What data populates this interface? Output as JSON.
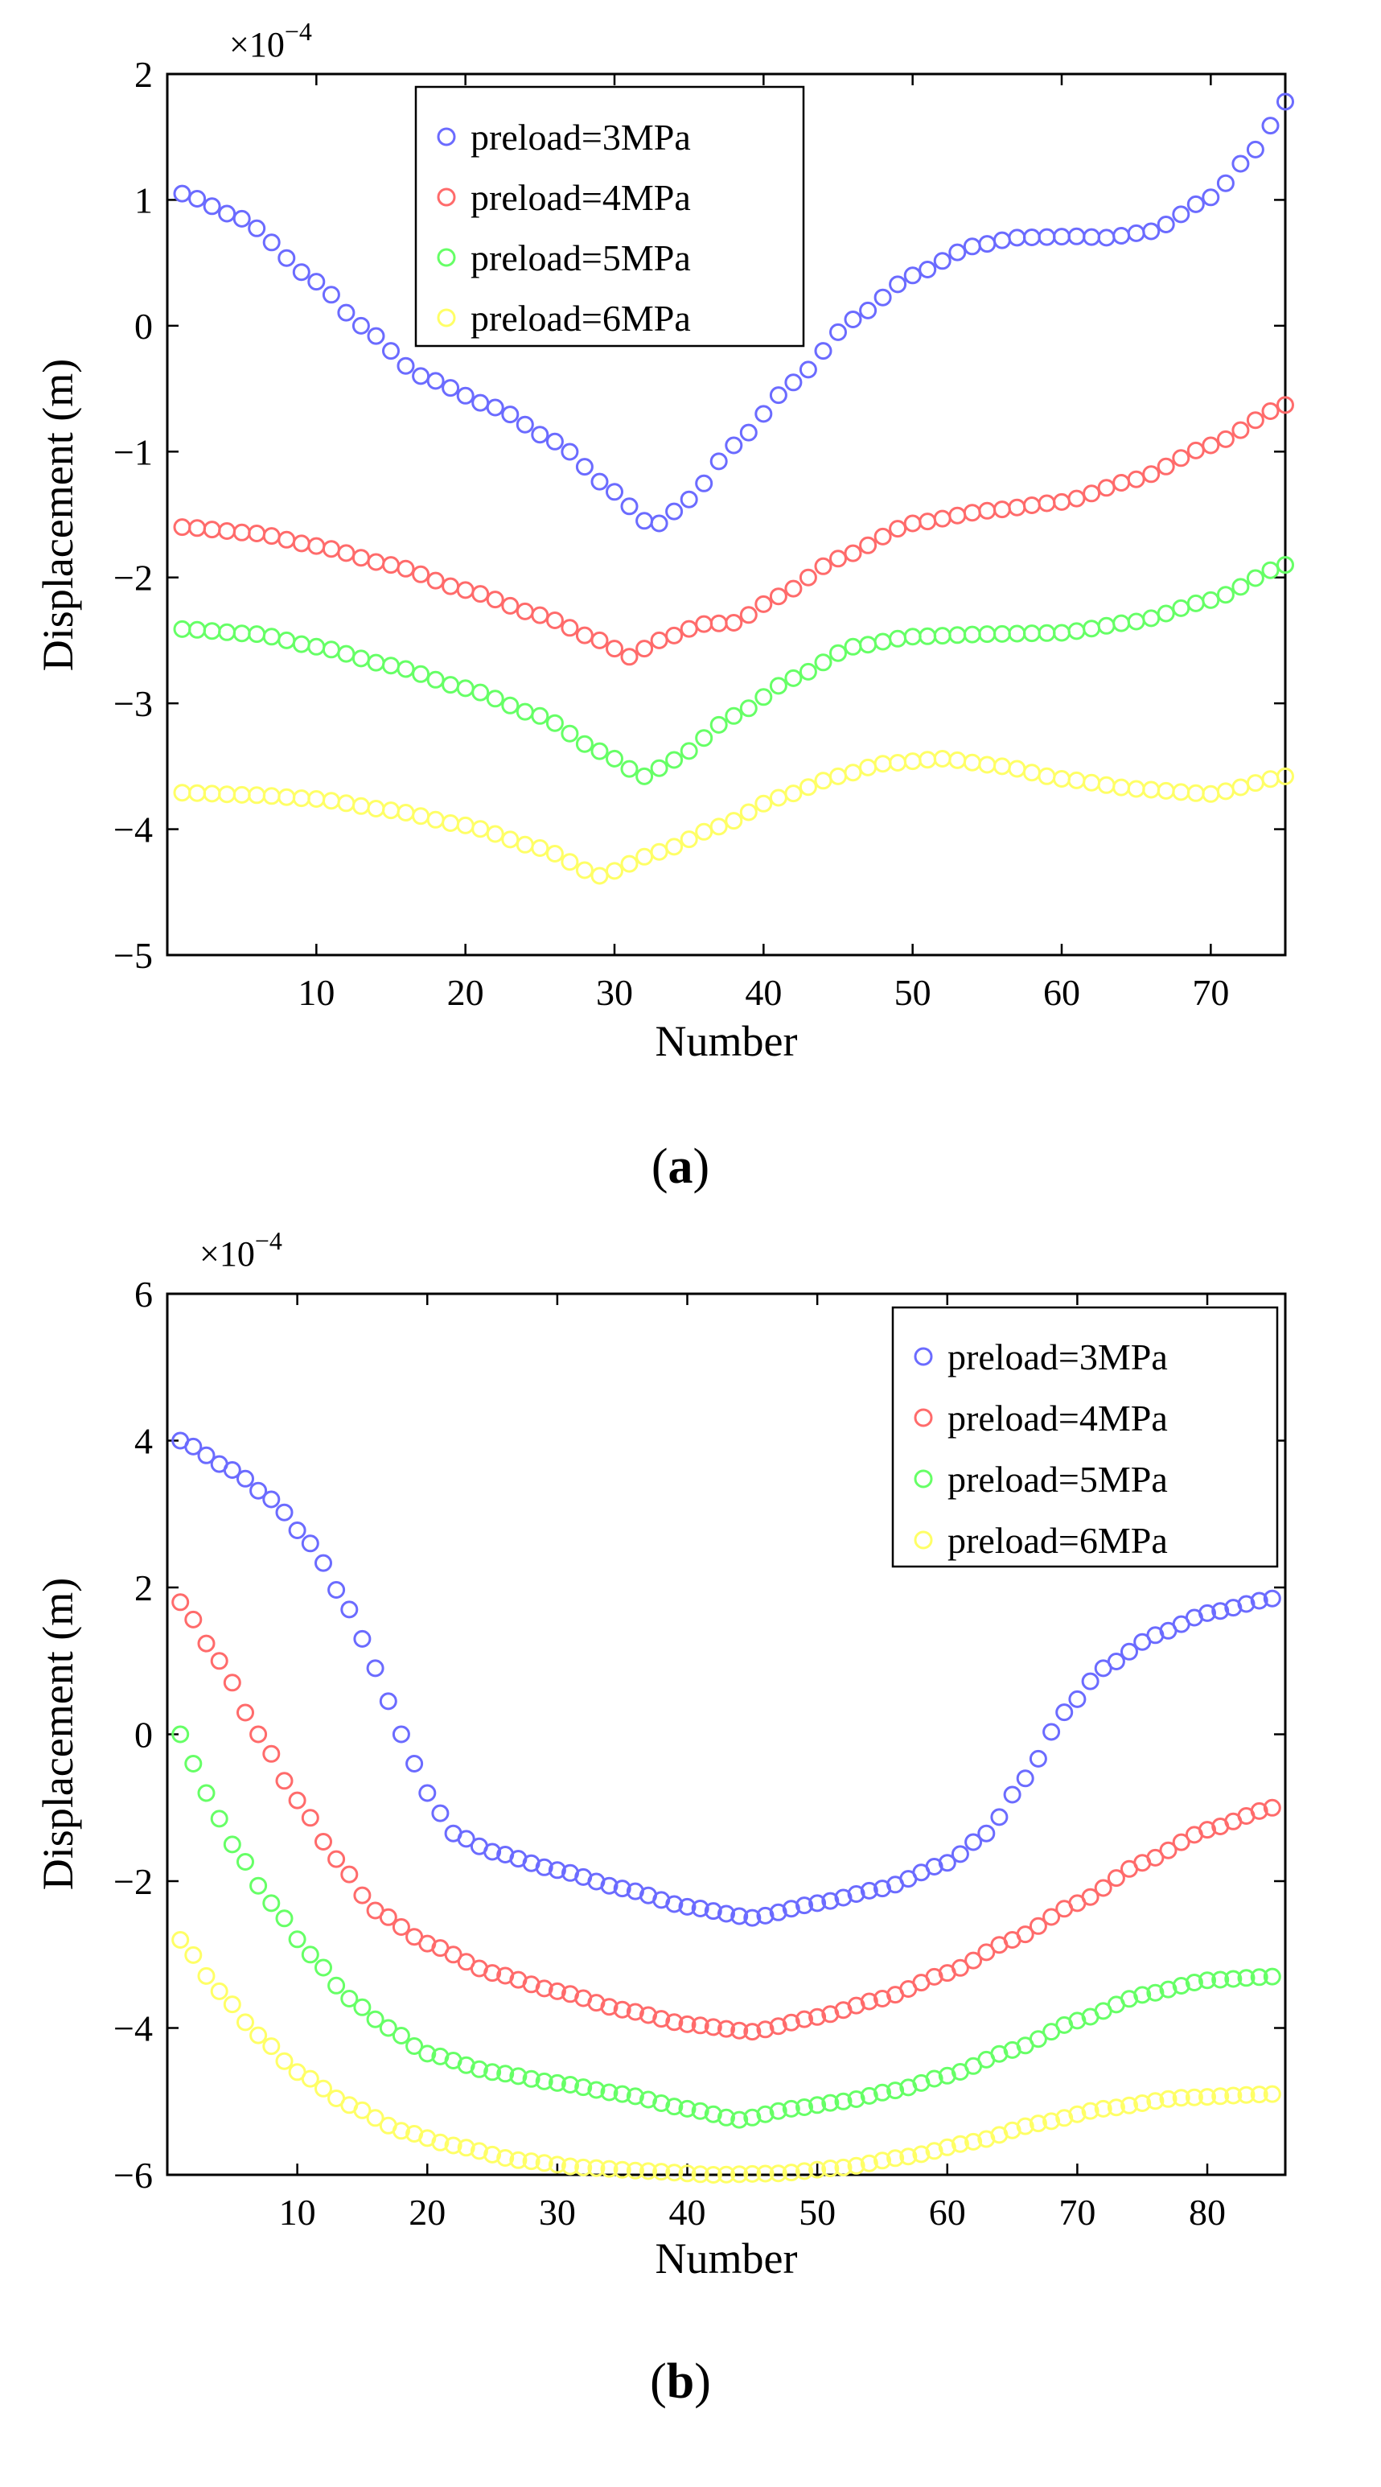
{
  "chart_data": [
    {
      "type": "scatter",
      "panel_label": "(a)",
      "xlabel": "Number",
      "ylabel": "Displacement (m)",
      "y_multiplier_label": "×10",
      "y_multiplier_exp": "−4",
      "xlim": [
        0,
        75
      ],
      "ylim": [
        -5,
        2
      ],
      "xticks": [
        10,
        20,
        30,
        40,
        50,
        60,
        70
      ],
      "yticks": [
        -5,
        -4,
        -3,
        -2,
        -1,
        0,
        1,
        2
      ],
      "grid": false,
      "legend_position": "top-center",
      "marker": "open-circle",
      "x_start": 1,
      "x_end": 75,
      "series": [
        {
          "name": "preload=3MPa",
          "color": "#6b6bff",
          "knots": [
            [
              1,
              1.05
            ],
            [
              5,
              0.85
            ],
            [
              10,
              0.35
            ],
            [
              13,
              0.0
            ],
            [
              17,
              -0.4
            ],
            [
              22,
              -0.65
            ],
            [
              26,
              -0.92
            ],
            [
              30,
              -1.32
            ],
            [
              32,
              -1.55
            ],
            [
              33,
              -1.57
            ],
            [
              35,
              -1.38
            ],
            [
              38,
              -0.95
            ],
            [
              42,
              -0.45
            ],
            [
              46,
              0.05
            ],
            [
              50,
              0.4
            ],
            [
              54,
              0.63
            ],
            [
              57,
              0.7
            ],
            [
              61,
              0.71
            ],
            [
              63,
              0.7
            ],
            [
              66,
              0.75
            ],
            [
              70,
              1.02
            ],
            [
              73,
              1.4
            ],
            [
              75,
              1.78
            ]
          ]
        },
        {
          "name": "preload=4MPa",
          "color": "#ff6b6b",
          "knots": [
            [
              1,
              -1.6
            ],
            [
              6,
              -1.65
            ],
            [
              10,
              -1.75
            ],
            [
              15,
              -1.9
            ],
            [
              20,
              -2.1
            ],
            [
              25,
              -2.3
            ],
            [
              29,
              -2.5
            ],
            [
              31,
              -2.63
            ],
            [
              33,
              -2.5
            ],
            [
              36,
              -2.37
            ],
            [
              38,
              -2.36
            ],
            [
              41,
              -2.15
            ],
            [
              45,
              -1.85
            ],
            [
              50,
              -1.57
            ],
            [
              55,
              -1.47
            ],
            [
              60,
              -1.4
            ],
            [
              65,
              -1.22
            ],
            [
              70,
              -0.95
            ],
            [
              75,
              -0.63
            ]
          ]
        },
        {
          "name": "preload=5MPa",
          "color": "#66ff66",
          "knots": [
            [
              1,
              -2.41
            ],
            [
              6,
              -2.45
            ],
            [
              10,
              -2.55
            ],
            [
              15,
              -2.7
            ],
            [
              20,
              -2.88
            ],
            [
              25,
              -3.1
            ],
            [
              29,
              -3.38
            ],
            [
              32,
              -3.58
            ],
            [
              34,
              -3.45
            ],
            [
              38,
              -3.1
            ],
            [
              42,
              -2.8
            ],
            [
              46,
              -2.55
            ],
            [
              50,
              -2.47
            ],
            [
              55,
              -2.45
            ],
            [
              60,
              -2.44
            ],
            [
              65,
              -2.35
            ],
            [
              70,
              -2.18
            ],
            [
              75,
              -1.9
            ]
          ]
        },
        {
          "name": "preload=6MPa",
          "color": "#ffff66",
          "knots": [
            [
              1,
              -3.71
            ],
            [
              6,
              -3.73
            ],
            [
              10,
              -3.76
            ],
            [
              15,
              -3.85
            ],
            [
              20,
              -3.97
            ],
            [
              25,
              -4.15
            ],
            [
              29,
              -4.37
            ],
            [
              33,
              -4.18
            ],
            [
              37,
              -3.98
            ],
            [
              41,
              -3.75
            ],
            [
              45,
              -3.58
            ],
            [
              48,
              -3.48
            ],
            [
              52,
              -3.44
            ],
            [
              56,
              -3.5
            ],
            [
              60,
              -3.6
            ],
            [
              65,
              -3.68
            ],
            [
              70,
              -3.72
            ],
            [
              75,
              -3.58
            ]
          ]
        }
      ]
    },
    {
      "type": "scatter",
      "panel_label": "(b)",
      "xlabel": "Number",
      "ylabel": "Displacement (m)",
      "y_multiplier_label": "×10",
      "y_multiplier_exp": "−4",
      "xlim": [
        0,
        86
      ],
      "ylim": [
        -6,
        6
      ],
      "xticks": [
        10,
        20,
        30,
        40,
        50,
        60,
        70,
        80
      ],
      "yticks": [
        -6,
        -4,
        -2,
        0,
        2,
        4,
        6
      ],
      "grid": false,
      "legend_position": "top-right",
      "marker": "open-circle",
      "x_start": 1,
      "x_end": 85,
      "series": [
        {
          "name": "preload=3MPa",
          "color": "#6b6bff",
          "knots": [
            [
              1,
              4.0
            ],
            [
              5,
              3.6
            ],
            [
              8,
              3.2
            ],
            [
              11,
              2.6
            ],
            [
              14,
              1.7
            ],
            [
              16,
              0.9
            ],
            [
              18,
              0.0
            ],
            [
              20,
              -0.8
            ],
            [
              22,
              -1.35
            ],
            [
              25,
              -1.6
            ],
            [
              30,
              -1.85
            ],
            [
              35,
              -2.1
            ],
            [
              40,
              -2.35
            ],
            [
              45,
              -2.5
            ],
            [
              50,
              -2.3
            ],
            [
              55,
              -2.1
            ],
            [
              60,
              -1.75
            ],
            [
              63,
              -1.35
            ],
            [
              66,
              -0.6
            ],
            [
              69,
              0.3
            ],
            [
              72,
              0.9
            ],
            [
              76,
              1.35
            ],
            [
              80,
              1.65
            ],
            [
              85,
              1.85
            ]
          ]
        },
        {
          "name": "preload=4MPa",
          "color": "#ff6b6b",
          "knots": [
            [
              1,
              1.8
            ],
            [
              4,
              1.0
            ],
            [
              7,
              0.0
            ],
            [
              10,
              -0.9
            ],
            [
              13,
              -1.7
            ],
            [
              16,
              -2.4
            ],
            [
              20,
              -2.85
            ],
            [
              25,
              -3.25
            ],
            [
              30,
              -3.5
            ],
            [
              35,
              -3.75
            ],
            [
              40,
              -3.95
            ],
            [
              45,
              -4.05
            ],
            [
              50,
              -3.85
            ],
            [
              55,
              -3.6
            ],
            [
              60,
              -3.25
            ],
            [
              65,
              -2.8
            ],
            [
              70,
              -2.3
            ],
            [
              75,
              -1.75
            ],
            [
              80,
              -1.3
            ],
            [
              85,
              -1.0
            ]
          ]
        },
        {
          "name": "preload=5MPa",
          "color": "#66ff66",
          "knots": [
            [
              1,
              0.0
            ],
            [
              3,
              -0.8
            ],
            [
              5,
              -1.5
            ],
            [
              8,
              -2.3
            ],
            [
              11,
              -3.0
            ],
            [
              14,
              -3.6
            ],
            [
              17,
              -4.0
            ],
            [
              20,
              -4.35
            ],
            [
              25,
              -4.6
            ],
            [
              30,
              -4.75
            ],
            [
              35,
              -4.9
            ],
            [
              40,
              -5.1
            ],
            [
              44,
              -5.25
            ],
            [
              48,
              -5.1
            ],
            [
              52,
              -5.0
            ],
            [
              56,
              -4.85
            ],
            [
              60,
              -4.65
            ],
            [
              65,
              -4.3
            ],
            [
              70,
              -3.9
            ],
            [
              75,
              -3.55
            ],
            [
              80,
              -3.35
            ],
            [
              85,
              -3.3
            ]
          ]
        },
        {
          "name": "preload=6MPa",
          "color": "#ffff66",
          "knots": [
            [
              1,
              -2.8
            ],
            [
              4,
              -3.5
            ],
            [
              7,
              -4.1
            ],
            [
              10,
              -4.6
            ],
            [
              14,
              -5.05
            ],
            [
              18,
              -5.4
            ],
            [
              22,
              -5.6
            ],
            [
              27,
              -5.8
            ],
            [
              32,
              -5.9
            ],
            [
              37,
              -5.95
            ],
            [
              42,
              -6.0
            ],
            [
              47,
              -5.98
            ],
            [
              52,
              -5.9
            ],
            [
              57,
              -5.75
            ],
            [
              62,
              -5.55
            ],
            [
              67,
              -5.3
            ],
            [
              72,
              -5.1
            ],
            [
              78,
              -4.95
            ],
            [
              85,
              -4.9
            ]
          ]
        }
      ]
    }
  ]
}
